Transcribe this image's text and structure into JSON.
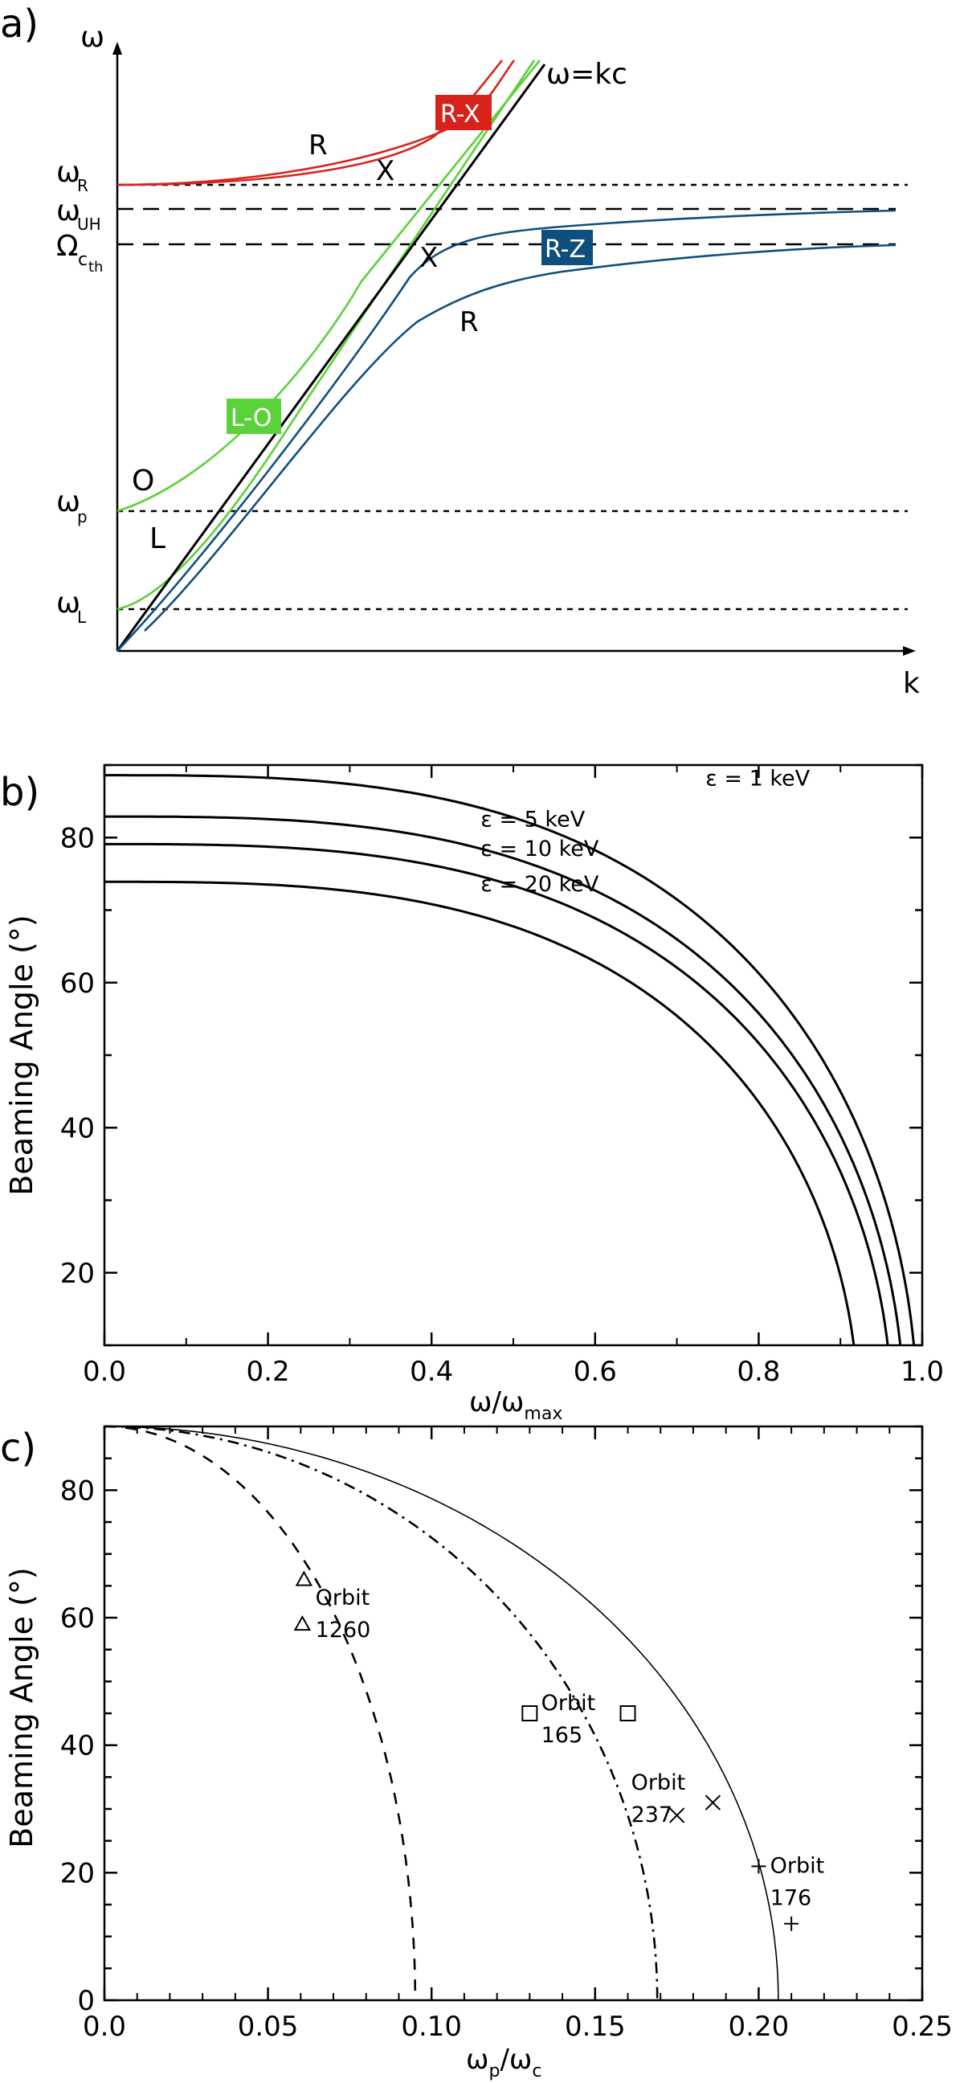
{
  "chart_data": [
    {
      "type": "line",
      "panel_label": "a)",
      "title": "",
      "xlabel": "k",
      "ylabel": "ω",
      "annotation": "ω=kc",
      "levels": [
        {
          "name": "ω_R",
          "sym": "ω",
          "sub": "R",
          "dash": "short",
          "value": 0.74
        },
        {
          "name": "ω_UH",
          "sym": "ω",
          "sub": "UH",
          "dash": "long",
          "value": 0.7
        },
        {
          "name": "Ω_cth",
          "sym": "Ω",
          "sub": "c",
          "subsub": "th",
          "dash": "long",
          "value": 0.645
        },
        {
          "name": "ω_p",
          "sym": "ω",
          "sub": "p",
          "dash": "short",
          "value": 0.225
        },
        {
          "name": "ω_L",
          "sym": "ω",
          "sub": "L",
          "dash": "short",
          "value": 0.065
        }
      ],
      "mode_labels": [
        {
          "text": "R",
          "color": "#d8231c",
          "boxed": false
        },
        {
          "text": "X",
          "color": "#d8231c",
          "boxed": false
        },
        {
          "text": "R-X",
          "color": "#d8231c",
          "boxed": true
        },
        {
          "text": "X",
          "color": "#1d2b8f",
          "boxed": false
        },
        {
          "text": "R",
          "color": "#1d2b8f",
          "boxed": false
        },
        {
          "text": "R-Z",
          "color": "#0e4f7d",
          "boxed": true
        },
        {
          "text": "L-O",
          "color": "#5bd13a",
          "boxed": true
        },
        {
          "text": "O",
          "color": "#3aa83a",
          "boxed": false
        },
        {
          "text": "L",
          "color": "#3aa83a",
          "boxed": false
        }
      ],
      "colors": {
        "red": "#d8231c",
        "blue": "#0e4f7d",
        "green": "#5bd13a",
        "black": "#000000"
      }
    },
    {
      "type": "line",
      "panel_label": "b)",
      "xlabel": "ω/ω",
      "xlabel_sub": "max",
      "ylabel": "Beaming Angle (°)",
      "xlim": [
        0,
        1.0
      ],
      "ylim": [
        10,
        90
      ],
      "xticks": [
        "0.0",
        "0.2",
        "0.4",
        "0.6",
        "0.8",
        "1.0"
      ],
      "yticks": [
        "20",
        "40",
        "60",
        "80"
      ],
      "series": [
        {
          "name": "ε = 1 keV",
          "energy_keV": 1,
          "theta0": 88.6,
          "x_end": 0.994
        },
        {
          "name": "ε =  5 keV",
          "energy_keV": 5,
          "theta0": 82.9,
          "x_end": 0.978
        },
        {
          "name": "ε = 10 keV",
          "energy_keV": 10,
          "theta0": 79.1,
          "x_end": 0.963
        },
        {
          "name": "ε = 20 keV",
          "energy_keV": 20,
          "theta0": 73.9,
          "x_end": 0.922
        }
      ]
    },
    {
      "type": "line",
      "panel_label": "c)",
      "xlabel": "ω",
      "xlabel_sub1": "p",
      "xlabel_mid": "/ω",
      "xlabel_sub2": "c",
      "ylabel": "Beaming Angle (°)",
      "xlim": [
        0,
        0.25
      ],
      "ylim": [
        0,
        90
      ],
      "xticks": [
        "0.0",
        "0.05",
        "0.10",
        "0.15",
        "0.20",
        "0.25"
      ],
      "yticks": [
        "0",
        "20",
        "40",
        "60",
        "80"
      ],
      "series": [
        {
          "name": "dashed",
          "style": "dashed",
          "x_end": 0.095
        },
        {
          "name": "dash-dot",
          "style": "dashdot",
          "x_end": 0.169
        },
        {
          "name": "solid",
          "style": "solid",
          "x_end": 0.206
        }
      ],
      "observations": [
        {
          "orbit": "1260",
          "label": "Orbit",
          "marker": "triangle",
          "points": [
            [
              0.061,
              66
            ],
            [
              0.0605,
              59
            ]
          ]
        },
        {
          "orbit": "165",
          "label": "Orbit",
          "marker": "square",
          "points": [
            [
              0.13,
              45
            ],
            [
              0.16,
              45
            ]
          ]
        },
        {
          "orbit": "237",
          "label": "Orbit",
          "marker": "cross",
          "points": [
            [
              0.175,
              29
            ],
            [
              0.186,
              31
            ]
          ]
        },
        {
          "orbit": "176",
          "label": "Orbit",
          "marker": "plus",
          "points": [
            [
              0.2,
              21
            ],
            [
              0.21,
              12
            ]
          ]
        }
      ]
    }
  ]
}
